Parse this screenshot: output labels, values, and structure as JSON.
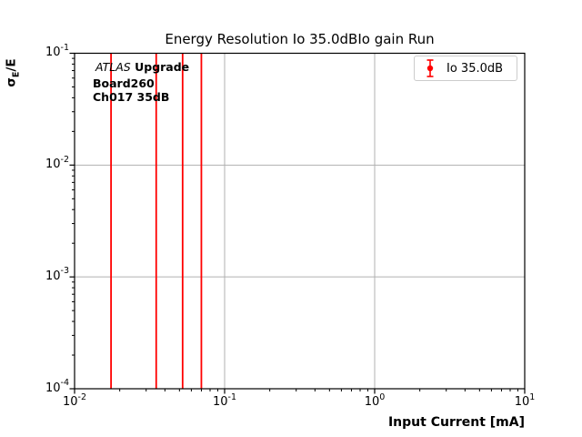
{
  "figure": {
    "title": "Energy Resolution Io 35.0dBIo gain Run",
    "xlabel": "Input Current [mA]",
    "ylabel": {
      "sigma": "σ",
      "subscript": "E",
      "rest": "/E"
    },
    "annotation": {
      "experiment": "ATLAS",
      "program": "Upgrade",
      "board": "Board260",
      "channel": "Ch017 35dB"
    },
    "legend": {
      "label": "Io 35.0dB",
      "marker_color": "#ff0000"
    }
  },
  "chart_data": {
    "type": "errorbar",
    "title": "Energy Resolution Io 35.0dBIo gain Run",
    "xlabel": "Input Current [mA]",
    "ylabel": "σ_E/E",
    "xscale": "log",
    "yscale": "log",
    "xlim": [
      0.01,
      10
    ],
    "ylim": [
      0.0001,
      0.1
    ],
    "grid": true,
    "legend_position": "upper right",
    "x_ticks": [
      {
        "value": 0.01,
        "label": "10^-2"
      },
      {
        "value": 0.1,
        "label": "10^-1"
      },
      {
        "value": 1,
        "label": "10^0"
      },
      {
        "value": 10,
        "label": "10^1"
      }
    ],
    "y_ticks": [
      {
        "value": 0.1,
        "label": "10^-1"
      },
      {
        "value": 0.01,
        "label": "10^-2"
      },
      {
        "value": 0.001,
        "label": "10^-3"
      },
      {
        "value": 0.0001,
        "label": "10^-4"
      }
    ],
    "series": [
      {
        "name": "Io 35.0dB",
        "color": "#ff0000",
        "x": [
          0.0175,
          0.035,
          0.0525,
          0.07
        ],
        "error_note": "vertical error bars span the entire visible y-range (1e-4 to 1e-1); central marker values not visible"
      }
    ],
    "colors": {
      "grid": "#b0b0b0",
      "spine": "#000000",
      "background": "#ffffff"
    }
  }
}
